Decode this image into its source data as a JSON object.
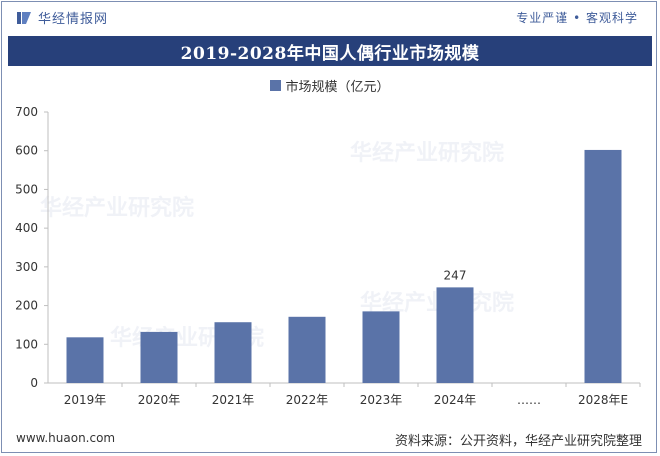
{
  "header": {
    "brand": "华经情报网",
    "slogan": "专业严谨 • 客观科学"
  },
  "watermark": "华经产业研究院",
  "footer": {
    "url": "www.huaon.com",
    "source": "资料来源：公开资料，华经产业研究院整理"
  },
  "colors": {
    "bar": "#5a73a8",
    "title_band": "#27407a",
    "accent": "#3f5c9a"
  },
  "chart_data": {
    "type": "bar",
    "title": "2019-2028年中国人偶行业市场规模",
    "categories": [
      "2019年",
      "2020年",
      "2021年",
      "2022年",
      "2023年",
      "2024年",
      "……",
      "2028年E"
    ],
    "series": [
      {
        "name": "市场规模（亿元）",
        "values": [
          118,
          132,
          157,
          171,
          185,
          247,
          null,
          602
        ]
      }
    ],
    "data_labels": [
      null,
      null,
      null,
      null,
      null,
      "247",
      null,
      null
    ],
    "ylim": [
      0,
      700
    ],
    "yticks": [
      0,
      100,
      200,
      300,
      400,
      500,
      600,
      700
    ],
    "legend_position": "top-center",
    "grid": false
  }
}
